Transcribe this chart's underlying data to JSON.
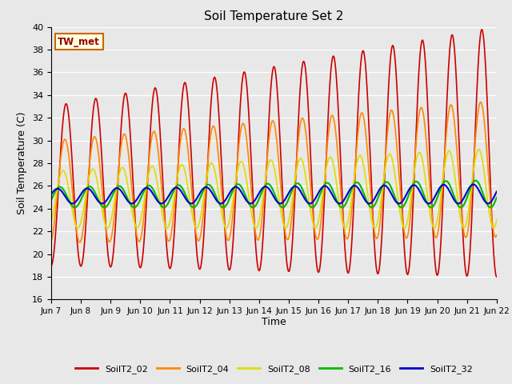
{
  "title": "Soil Temperature Set 2",
  "xlabel": "Time",
  "ylabel": "Soil Temperature (C)",
  "ylim": [
    16,
    40
  ],
  "annotation": "TW_met",
  "bg_color": "#e8e8e8",
  "fig_bg_color": "#e8e8e8",
  "series_colors": {
    "SoilT2_02": "#cc0000",
    "SoilT2_04": "#ff8800",
    "SoilT2_08": "#dddd00",
    "SoilT2_16": "#00bb00",
    "SoilT2_32": "#0000cc"
  },
  "xtick_labels": [
    "Jun 7",
    "Jun 8",
    "Jun 9",
    "Jun 10",
    "Jun 11",
    "Jun 12",
    "Jun 13",
    "Jun 14",
    "Jun 15",
    "Jun 16",
    "Jun 17",
    "Jun 18",
    "Jun 19",
    "Jun 20",
    "Jun 21",
    "Jun 22"
  ],
  "xtick_positions": [
    0,
    1,
    2,
    3,
    4,
    5,
    6,
    7,
    8,
    9,
    10,
    11,
    12,
    13,
    14,
    15
  ],
  "ytick_values": [
    16,
    18,
    20,
    22,
    24,
    26,
    28,
    30,
    32,
    34,
    36,
    38,
    40
  ]
}
